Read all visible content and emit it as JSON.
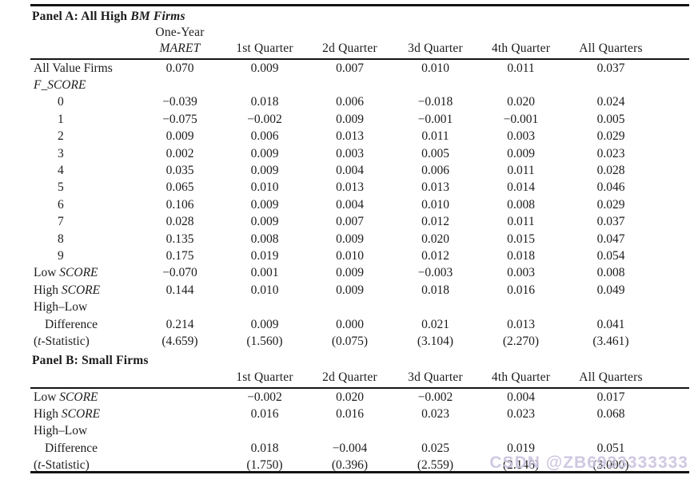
{
  "watermark": {
    "text": "CSDN @ZB6933333333",
    "color": "#cbc3df"
  },
  "panel_a": {
    "title": "Panel A: All High *BM Firms*",
    "header": {
      "col1_line1": "One-Year",
      "col1_line2": "*MARET*",
      "quarters": [
        "1st Quarter",
        "2d Quarter",
        "3d Quarter",
        "4th Quarter",
        "All Quarters"
      ]
    },
    "rows": [
      {
        "label": "All Value Firms",
        "indent": 0,
        "values": [
          "0.070",
          "0.009",
          "0.007",
          "0.010",
          "0.011",
          "0.037"
        ]
      },
      {
        "label": "*F_SCORE*",
        "indent": 0,
        "values": []
      },
      {
        "label": "0",
        "indent": 2,
        "values": [
          "−0.039",
          "0.018",
          "0.006",
          "−0.018",
          "0.020",
          "0.024"
        ]
      },
      {
        "label": "1",
        "indent": 2,
        "values": [
          "−0.075",
          "−0.002",
          "0.009",
          "−0.001",
          "−0.001",
          "0.005"
        ]
      },
      {
        "label": "2",
        "indent": 2,
        "values": [
          "0.009",
          "0.006",
          "0.013",
          "0.011",
          "0.003",
          "0.029"
        ]
      },
      {
        "label": "3",
        "indent": 2,
        "values": [
          "0.002",
          "0.009",
          "0.003",
          "0.005",
          "0.009",
          "0.023"
        ]
      },
      {
        "label": "4",
        "indent": 2,
        "values": [
          "0.035",
          "0.009",
          "0.004",
          "0.006",
          "0.011",
          "0.028"
        ]
      },
      {
        "label": "5",
        "indent": 2,
        "values": [
          "0.065",
          "0.010",
          "0.013",
          "0.013",
          "0.014",
          "0.046"
        ]
      },
      {
        "label": "6",
        "indent": 2,
        "values": [
          "0.106",
          "0.009",
          "0.004",
          "0.010",
          "0.008",
          "0.029"
        ]
      },
      {
        "label": "7",
        "indent": 2,
        "values": [
          "0.028",
          "0.009",
          "0.007",
          "0.012",
          "0.011",
          "0.037"
        ]
      },
      {
        "label": "8",
        "indent": 2,
        "values": [
          "0.135",
          "0.008",
          "0.009",
          "0.020",
          "0.015",
          "0.047"
        ]
      },
      {
        "label": "9",
        "indent": 2,
        "values": [
          "0.175",
          "0.019",
          "0.010",
          "0.012",
          "0.018",
          "0.054"
        ]
      },
      {
        "label": "Low *SCORE*",
        "indent": 0,
        "values": [
          "−0.070",
          "0.001",
          "0.009",
          "−0.003",
          "0.003",
          "0.008"
        ]
      },
      {
        "label": "High *SCORE*",
        "indent": 0,
        "values": [
          "0.144",
          "0.010",
          "0.009",
          "0.018",
          "0.016",
          "0.049"
        ]
      },
      {
        "label": "High–Low",
        "indent": 0,
        "values": []
      },
      {
        "label": "Difference",
        "indent": 1,
        "values": [
          "0.214",
          "0.009",
          "0.000",
          "0.021",
          "0.013",
          "0.041"
        ]
      },
      {
        "label": "(*t*-Statistic)",
        "indent": 0,
        "values": [
          "(4.659)",
          "(1.560)",
          "(0.075)",
          "(3.104)",
          "(2.270)",
          "(3.461)"
        ]
      }
    ]
  },
  "panel_b": {
    "title": "Panel B: Small Firms",
    "header": {
      "quarters": [
        "1st Quarter",
        "2d Quarter",
        "3d Quarter",
        "4th Quarter",
        "All Quarters"
      ]
    },
    "rows": [
      {
        "label": "Low *SCORE*",
        "indent": 0,
        "values": [
          "−0.002",
          "0.020",
          "−0.002",
          "0.004",
          "0.017"
        ]
      },
      {
        "label": "High *SCORE*",
        "indent": 0,
        "values": [
          "0.016",
          "0.016",
          "0.023",
          "0.023",
          "0.068"
        ]
      },
      {
        "label": "High–Low",
        "indent": 0,
        "values": []
      },
      {
        "label": "Difference",
        "indent": 1,
        "values": [
          "0.018",
          "−0.004",
          "0.025",
          "0.019",
          "0.051"
        ]
      },
      {
        "label": "(*t*-Statistic)",
        "indent": 0,
        "values": [
          "(1.750)",
          "(0.396)",
          "(2.559)",
          "(2.146)",
          "(3.000)"
        ]
      }
    ]
  }
}
